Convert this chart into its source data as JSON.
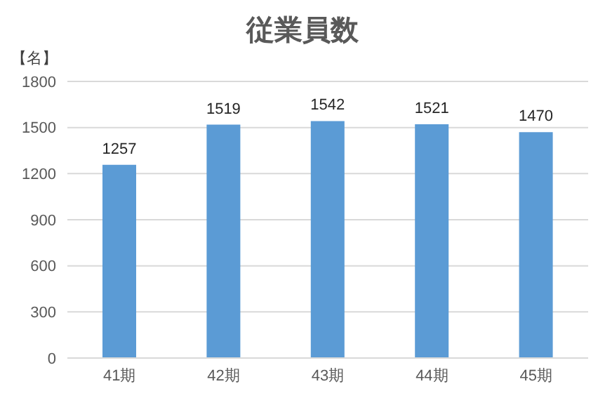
{
  "chart_data": {
    "type": "bar",
    "title": "従業員数",
    "ylabel": "【名】",
    "categories": [
      "41期",
      "42期",
      "43期",
      "44期",
      "45期"
    ],
    "values": [
      1257,
      1519,
      1542,
      1521,
      1470
    ],
    "color": "#5b9bd5",
    "ylim": [
      0,
      1800
    ],
    "yticks": [
      0,
      300,
      600,
      900,
      1200,
      1500,
      1800
    ],
    "grid": "y",
    "data_labels": true,
    "legend": false
  }
}
